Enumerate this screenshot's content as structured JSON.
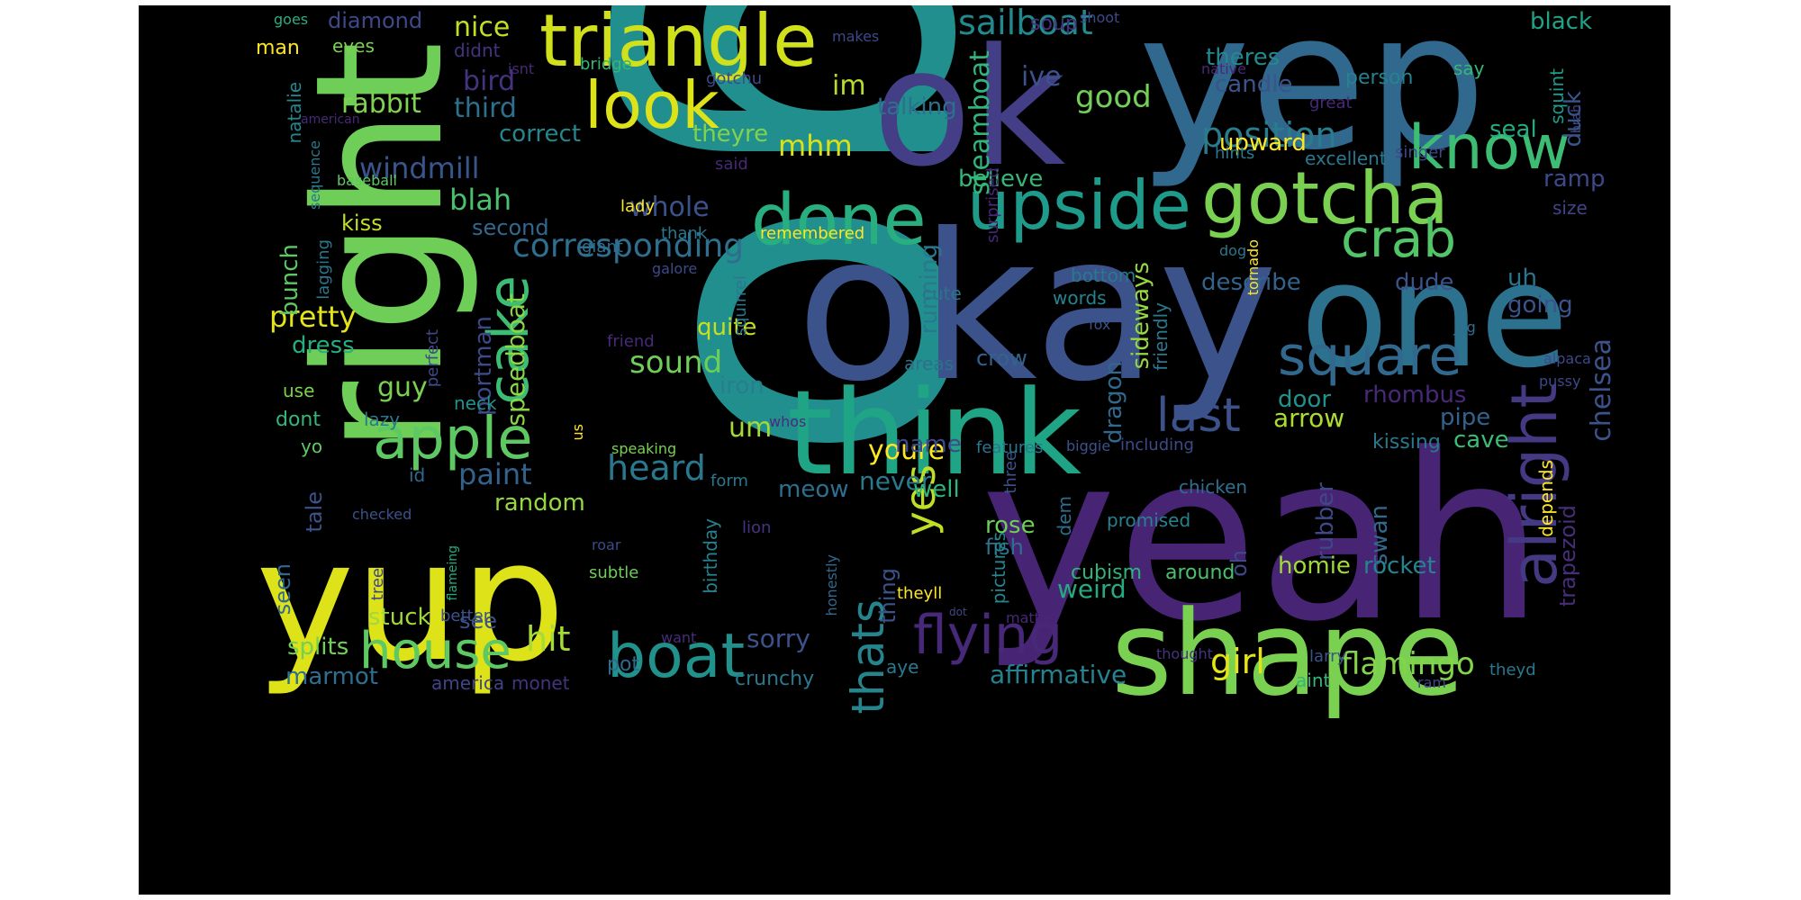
{
  "words": [
    {
      "text": "go",
      "color": "#218f8d"
    },
    {
      "text": "yeah",
      "color": "#482474"
    },
    {
      "text": "okay",
      "color": "#3b528b"
    },
    {
      "text": "right",
      "color": "#6ece58"
    },
    {
      "text": "yep",
      "color": "#31688e"
    },
    {
      "text": "ok",
      "color": "#433e85"
    },
    {
      "text": "yup",
      "color": "#dde318"
    },
    {
      "text": "one",
      "color": "#2c728e"
    },
    {
      "text": "shape",
      "color": "#7ad151"
    },
    {
      "text": "think",
      "color": "#20a486"
    },
    {
      "text": "triangle",
      "color": "#d0e11c"
    },
    {
      "text": "gotcha",
      "color": "#7ad151"
    },
    {
      "text": "upside",
      "color": "#1e9b8a"
    },
    {
      "text": "done",
      "color": "#29af7f"
    },
    {
      "text": "alright",
      "color": "#443983"
    },
    {
      "text": "look",
      "color": "#dde318"
    },
    {
      "text": "know",
      "color": "#3dbc74"
    },
    {
      "text": "square",
      "color": "#31688e"
    },
    {
      "text": "apple",
      "color": "#5ec962"
    },
    {
      "text": "cake",
      "color": "#3dbc74"
    },
    {
      "text": "boat",
      "color": "#21918c"
    },
    {
      "text": "house",
      "color": "#5ec962"
    },
    {
      "text": "flying",
      "color": "#482878"
    },
    {
      "text": "crab",
      "color": "#52c569"
    },
    {
      "text": "thats",
      "color": "#25858e"
    },
    {
      "text": "last",
      "color": "#3b528b"
    },
    {
      "text": "yes",
      "color": "#bddf26"
    },
    {
      "text": "sailboat",
      "color": "#23898e"
    },
    {
      "text": "corresponding",
      "color": "#2e6e8e"
    },
    {
      "text": "position",
      "color": "#287c8e"
    },
    {
      "text": "heard",
      "color": "#2a788e"
    },
    {
      "text": "girl",
      "color": "#e2e418"
    },
    {
      "text": "flamingo",
      "color": "#84d44b"
    },
    {
      "text": "hit",
      "color": "#a5db36"
    },
    {
      "text": "sound",
      "color": "#6ece58"
    },
    {
      "text": "nice",
      "color": "#c0df25"
    },
    {
      "text": "pretty",
      "color": "#e5e419"
    },
    {
      "text": "good",
      "color": "#73d056"
    },
    {
      "text": "mhm",
      "color": "#d8e219"
    },
    {
      "text": "youre",
      "color": "#fde725"
    },
    {
      "text": "trapezoid",
      "color": "#472d7b"
    },
    {
      "text": "chelsea",
      "color": "#3b528b"
    },
    {
      "text": "windmill",
      "color": "#39568c"
    },
    {
      "text": "paint",
      "color": "#33638d"
    },
    {
      "text": "blah",
      "color": "#4ac16d"
    },
    {
      "text": "whole",
      "color": "#3b528b"
    },
    {
      "text": "steamboat",
      "color": "#31b57b"
    },
    {
      "text": "rabbit",
      "color": "#7fd34e"
    },
    {
      "text": "third",
      "color": "#2d708e"
    },
    {
      "text": "bird",
      "color": "#46337f"
    },
    {
      "text": "im",
      "color": "#b5de2b"
    },
    {
      "text": "um",
      "color": "#a2da37"
    },
    {
      "text": "rhombus",
      "color": "#482878"
    },
    {
      "text": "arrow",
      "color": "#addc30"
    },
    {
      "text": "weird",
      "color": "#25ab82"
    },
    {
      "text": "affirmative",
      "color": "#26828e"
    },
    {
      "text": "sorry",
      "color": "#3b528b"
    },
    {
      "text": "never",
      "color": "#2a788e"
    },
    {
      "text": "portman",
      "color": "#3e4989"
    },
    {
      "text": "speedboat",
      "color": "#8bd646"
    },
    {
      "text": "running",
      "color": "#2a788e"
    },
    {
      "text": "sideways",
      "color": "#95d840"
    },
    {
      "text": "dragon",
      "color": "#31688e"
    },
    {
      "text": "rubber",
      "color": "#3e4989"
    },
    {
      "text": "homie",
      "color": "#a0da39"
    },
    {
      "text": "rocket",
      "color": "#25858e"
    },
    {
      "text": "swan",
      "color": "#31688e"
    },
    {
      "text": "guy",
      "color": "#7ad151"
    },
    {
      "text": "random",
      "color": "#95d840"
    },
    {
      "text": "dress",
      "color": "#26ad81"
    },
    {
      "text": "bunch",
      "color": "#5ec962"
    },
    {
      "text": "correct",
      "color": "#24878e"
    },
    {
      "text": "theyre",
      "color": "#7fd34e"
    },
    {
      "text": "talking",
      "color": "#2e6f8e"
    },
    {
      "text": "believe",
      "color": "#35b779"
    },
    {
      "text": "quite",
      "color": "#c5e021"
    },
    {
      "text": "iron",
      "color": "#287d8e"
    },
    {
      "text": "meow",
      "color": "#2e6e8e"
    },
    {
      "text": "well",
      "color": "#2fb47c"
    },
    {
      "text": "name",
      "color": "#3e4a89"
    },
    {
      "text": "rose",
      "color": "#6ece58"
    },
    {
      "text": "fish",
      "color": "#2d718e"
    },
    {
      "text": "thing",
      "color": "#3b528b"
    },
    {
      "text": "oh",
      "color": "#3f4889"
    },
    {
      "text": "ive",
      "color": "#3b528b"
    },
    {
      "text": "soup",
      "color": "#46337f"
    },
    {
      "text": "theres",
      "color": "#23898e"
    },
    {
      "text": "candle",
      "color": "#3a548c"
    },
    {
      "text": "upward",
      "color": "#fde725"
    },
    {
      "text": "describe",
      "color": "#33638d"
    },
    {
      "text": "uh",
      "color": "#2a768e"
    },
    {
      "text": "going",
      "color": "#3b528b"
    },
    {
      "text": "dude",
      "color": "#3b528b"
    },
    {
      "text": "door",
      "color": "#21918c"
    },
    {
      "text": "pipe",
      "color": "#33638d"
    },
    {
      "text": "cave",
      "color": "#3dbc74"
    },
    {
      "text": "kissing",
      "color": "#2a788e"
    },
    {
      "text": "seal",
      "color": "#25ab82"
    },
    {
      "text": "duck",
      "color": "#39568c"
    },
    {
      "text": "ramp",
      "color": "#3e4989"
    },
    {
      "text": "black",
      "color": "#20a386"
    },
    {
      "text": "say",
      "color": "#35b779"
    },
    {
      "text": "squint",
      "color": "#1f9a8a"
    },
    {
      "text": "person",
      "color": "#26828e"
    },
    {
      "text": "excellent",
      "color": "#2a788e"
    },
    {
      "text": "size",
      "color": "#414487"
    },
    {
      "text": "diamond",
      "color": "#3e4989"
    },
    {
      "text": "man",
      "color": "#fde725"
    },
    {
      "text": "eyes",
      "color": "#7ad151"
    },
    {
      "text": "goes",
      "color": "#29af7f"
    },
    {
      "text": "didnt",
      "color": "#46337f"
    },
    {
      "text": "natalie",
      "color": "#24878e"
    },
    {
      "text": "sequence",
      "color": "#2a788e"
    },
    {
      "text": "kiss",
      "color": "#c2df23"
    },
    {
      "text": "second",
      "color": "#31688e"
    },
    {
      "text": "crow",
      "color": "#33638d"
    },
    {
      "text": "bottom",
      "color": "#2a788e"
    },
    {
      "text": "words",
      "color": "#25848e"
    },
    {
      "text": "cute",
      "color": "#2c728e"
    },
    {
      "text": "areas",
      "color": "#2d708e"
    },
    {
      "text": "neck",
      "color": "#20928c"
    },
    {
      "text": "use",
      "color": "#7ad151"
    },
    {
      "text": "dont",
      "color": "#35b779"
    },
    {
      "text": "lazy",
      "color": "#2a788e"
    },
    {
      "text": "yo",
      "color": "#5ec962"
    },
    {
      "text": "id",
      "color": "#31688e"
    },
    {
      "text": "tale",
      "color": "#3b528b"
    },
    {
      "text": "seen",
      "color": "#31688e"
    },
    {
      "text": "splits",
      "color": "#73d056"
    },
    {
      "text": "marmot",
      "color": "#2e6e8e"
    },
    {
      "text": "stuck",
      "color": "#9fda3a"
    },
    {
      "text": "see",
      "color": "#3b528b"
    },
    {
      "text": "pot",
      "color": "#31688e"
    },
    {
      "text": "america",
      "color": "#414487"
    },
    {
      "text": "monet",
      "color": "#46337f"
    },
    {
      "text": "crunchy",
      "color": "#2a788e"
    },
    {
      "text": "aye",
      "color": "#2a788e"
    },
    {
      "text": "aint",
      "color": "#35b779"
    },
    {
      "text": "theyd",
      "color": "#2a788e"
    },
    {
      "text": "larry",
      "color": "#3b528b"
    },
    {
      "text": "ram",
      "color": "#404688"
    },
    {
      "text": "around",
      "color": "#4ac16d"
    },
    {
      "text": "cubism",
      "color": "#2fb47c"
    },
    {
      "text": "promised",
      "color": "#26828e"
    },
    {
      "text": "chicken",
      "color": "#2e6e8e"
    },
    {
      "text": "theyll",
      "color": "#fde725"
    },
    {
      "text": "three",
      "color": "#3b528b"
    },
    {
      "text": "pictures",
      "color": "#25858e"
    },
    {
      "text": "dem",
      "color": "#2e6e8e"
    },
    {
      "text": "birthday",
      "color": "#26828e"
    },
    {
      "text": "lion",
      "color": "#46337f"
    },
    {
      "text": "subtle",
      "color": "#6ece58"
    },
    {
      "text": "roar",
      "color": "#3e4a89"
    },
    {
      "text": "honestly",
      "color": "#31688e"
    },
    {
      "text": "want",
      "color": "#472d7b"
    },
    {
      "text": "mattie",
      "color": "#482878"
    },
    {
      "text": "thought",
      "color": "#46337f"
    },
    {
      "text": "better",
      "color": "#3b528b"
    },
    {
      "text": "tree",
      "color": "#3e4989"
    },
    {
      "text": "flameing",
      "color": "#25ab82"
    },
    {
      "text": "checked",
      "color": "#3b528b"
    },
    {
      "text": "form",
      "color": "#2a788e"
    },
    {
      "text": "us",
      "color": "#fde725"
    },
    {
      "text": "speaking",
      "color": "#7ad151"
    },
    {
      "text": "whos",
      "color": "#472d7b"
    },
    {
      "text": "features",
      "color": "#2a788e"
    },
    {
      "text": "biggie",
      "color": "#3b528b"
    },
    {
      "text": "including",
      "color": "#3e4989"
    },
    {
      "text": "depends",
      "color": "#fde725"
    },
    {
      "text": "pussy",
      "color": "#3e4989"
    },
    {
      "text": "alpaca",
      "color": "#3e4989"
    },
    {
      "text": "jug",
      "color": "#2e6e8e"
    },
    {
      "text": "friendly",
      "color": "#2a788e"
    },
    {
      "text": "fox",
      "color": "#3b528b"
    },
    {
      "text": "tornado",
      "color": "#fde725"
    },
    {
      "text": "dog",
      "color": "#2a788e"
    },
    {
      "text": "singer",
      "color": "#3e4989"
    },
    {
      "text": "hints",
      "color": "#2a788e"
    },
    {
      "text": "great",
      "color": "#482878"
    },
    {
      "text": "brah",
      "color": "#3e4989"
    },
    {
      "text": "surprised",
      "color": "#482878"
    },
    {
      "text": "remembered",
      "color": "#fde725"
    },
    {
      "text": "lady",
      "color": "#fde725"
    },
    {
      "text": "thank",
      "color": "#2a788e"
    },
    {
      "text": "giant",
      "color": "#2e6e8e"
    },
    {
      "text": "galore",
      "color": "#3e4989"
    },
    {
      "text": "squirrel",
      "color": "#2a788e"
    },
    {
      "text": "friend",
      "color": "#482878"
    },
    {
      "text": "perfect",
      "color": "#3e4989"
    },
    {
      "text": "lagging",
      "color": "#2a788e"
    },
    {
      "text": "baseball",
      "color": "#5ec962"
    },
    {
      "text": "american",
      "color": "#482878"
    },
    {
      "text": "isnt",
      "color": "#482878"
    },
    {
      "text": "bridge",
      "color": "#35b779"
    },
    {
      "text": "gotchu",
      "color": "#3e4989"
    },
    {
      "text": "makes",
      "color": "#3e4989"
    },
    {
      "text": "shoot",
      "color": "#3e4989"
    },
    {
      "text": "native",
      "color": "#482878"
    },
    {
      "text": "said",
      "color": "#482878"
    },
    {
      "text": "dot",
      "color": "#3e4989"
    }
  ]
}
